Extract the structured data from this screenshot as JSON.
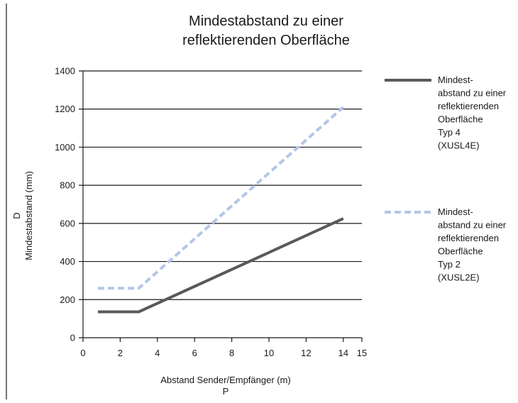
{
  "chart_data": {
    "type": "line",
    "title_lines": [
      "Mindestabstand zu einer",
      "reflektierenden Oberfläche"
    ],
    "xlabel": "Abstand Sender/Empfänger (m)",
    "xlabel_symbol": "P",
    "ylabel": "Mindestabstand (mm)",
    "ylabel_symbol": "D",
    "xlim": [
      0,
      15
    ],
    "ylim": [
      0,
      1400
    ],
    "x_ticks": [
      "0",
      "2",
      "4",
      "6",
      "8",
      "10",
      "12",
      "14",
      "15"
    ],
    "y_ticks": [
      "0",
      "200",
      "400",
      "600",
      "800",
      "1000",
      "1200",
      "1400"
    ],
    "grid": "horizontal",
    "legend_position": "right",
    "series": [
      {
        "name_lines": [
          "Mindest-",
          "abstand zu einer",
          "reflektierenden",
          "Oberfläche",
          "Typ 4",
          "(XUSL4E)"
        ],
        "color": "#595959",
        "style": "solid",
        "points": [
          [
            0.8,
            136
          ],
          [
            3.0,
            136
          ],
          [
            14.0,
            625
          ]
        ]
      },
      {
        "name_lines": [
          "Mindest-",
          "abstand zu einer",
          "reflektierenden",
          "Oberfläche",
          "Typ 2",
          "(XUSL2E)"
        ],
        "color": "#b4c6e7",
        "style": "dashed",
        "points": [
          [
            0.8,
            260
          ],
          [
            3.0,
            260
          ],
          [
            14.0,
            1210
          ]
        ]
      }
    ]
  }
}
